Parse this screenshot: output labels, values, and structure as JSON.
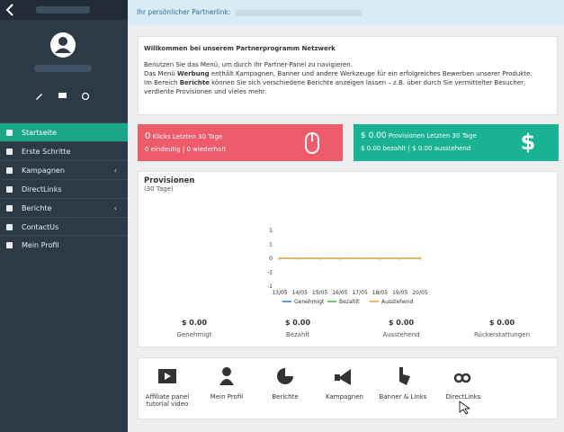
{
  "sidebar": {
    "menu": [
      "Startseite",
      "Erste Schritte",
      "Kampagnen",
      "DirectLinks",
      "Berichte",
      "ContactUs",
      "Mein Profil"
    ]
  },
  "header": {
    "partner_link_label": "Ihr persönlicher Partnerlink:"
  },
  "welcome": {
    "title": "Willkommen bei unserem Partnerprogramm Netzwerk",
    "intro": "Benutzen Sie das Menü, um durch Ihr Partner-Panel zu navigieren.",
    "line2": [
      "Das Menü ",
      "Werbung",
      " enthält Kampagnen, Banner und andere Werkzeuge für ein erfolgreiches Bewerben unserer Produkte."
    ],
    "line3": [
      "Im Bereich ",
      "Berichte",
      " können Sie sich verschiedene Berichte anzeigen lassen – z.B. über durch Sie vermittelter Besucher, verdiente Provisionen und vieles mehr."
    ]
  },
  "stats": {
    "clicks": {
      "value": "0",
      "label": "Klicks Letzten 30 Tage",
      "detail": "0 eindeutig | 0 wiederholt"
    },
    "commissions": {
      "value": "$ 0.00",
      "label": "Provisionen Letzten 30 Tage",
      "detail": "$ 0.00 bezahlt | $ 0.00 ausstehend"
    }
  },
  "provisions": {
    "title": "Provisionen",
    "subtitle": "(30 Tage)",
    "totals": [
      {
        "value": "$ 0.00",
        "label": "Genehmigt"
      },
      {
        "value": "$ 0.00",
        "label": "Bezahlt"
      },
      {
        "value": "$ 0.00",
        "label": "Ausstehend"
      },
      {
        "value": "$ 0.00",
        "label": "Rückerstattungen"
      }
    ]
  },
  "chart_data": {
    "type": "line",
    "categories": [
      "13/05",
      "14/05",
      "15/05",
      "16/05",
      "17/05",
      "18/05",
      "19/05",
      "20/05"
    ],
    "series": [
      {
        "name": "Genehmigt",
        "color": "#5b9bd5",
        "values": [
          0,
          0,
          0,
          0,
          0,
          0,
          0,
          0
        ]
      },
      {
        "name": "Bezahlt",
        "color": "#6cc26a",
        "values": [
          0,
          0,
          0,
          0,
          0,
          0,
          0,
          0
        ]
      },
      {
        "name": "Ausstehend",
        "color": "#f0b45a",
        "values": [
          0,
          0,
          0,
          0,
          0,
          0,
          0,
          0
        ]
      }
    ],
    "ylim": [
      -1,
      1
    ],
    "yticks": [
      -1,
      {
        "value": -0.5,
        "label": "-1"
      },
      0,
      {
        "value": 0.5,
        "label": "1"
      },
      1
    ],
    "grid": false
  },
  "shortcuts": [
    "Affiliate panel tutorial video",
    "Mein Profil",
    "Berichte",
    "Kampagnen",
    "Banner & Links",
    "DirectLinks"
  ]
}
